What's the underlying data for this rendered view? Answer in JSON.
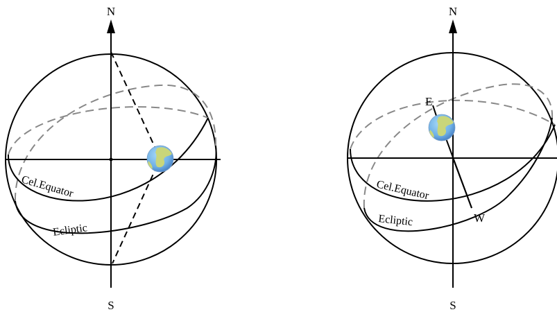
{
  "diagrams": [
    {
      "labels": {
        "north": "N",
        "south": "S",
        "celestial_equator": "Cel.Equator",
        "ecliptic": "Ecliptic"
      }
    },
    {
      "labels": {
        "north": "N",
        "south": "S",
        "east": "E",
        "west": "W",
        "celestial_equator": "Cel.Equator",
        "ecliptic": "Ecliptic"
      }
    }
  ],
  "colors": {
    "line": "#000000",
    "hidden_arc": "#888888",
    "earth_ocean": "#6fb0e6",
    "earth_land": "#c9d67a"
  },
  "icons": [
    "earth-icon",
    "arrow-up-icon"
  ]
}
